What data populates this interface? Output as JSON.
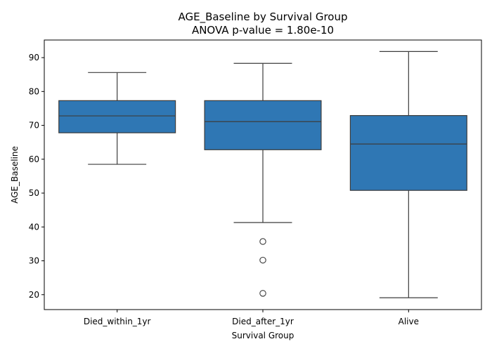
{
  "chart_data": {
    "type": "box",
    "title": "AGE_Baseline by Survival Group",
    "subtitle": "ANOVA p-value = 1.80e-10",
    "xlabel": "Survival Group",
    "ylabel": "AGE_Baseline",
    "ylim": [
      15.6,
      95.2
    ],
    "yticks": [
      20,
      30,
      40,
      50,
      60,
      70,
      80,
      90
    ],
    "categories": [
      "Died_within_1yr",
      "Died_after_1yr",
      "Alive"
    ],
    "boxes": [
      {
        "whisker_low": 58.5,
        "q1": 67.8,
        "median": 72.8,
        "q3": 77.3,
        "whisker_high": 85.6,
        "outliers": []
      },
      {
        "whisker_low": 41.3,
        "q1": 62.8,
        "median": 71.1,
        "q3": 77.3,
        "whisker_high": 88.3,
        "outliers": [
          35.7,
          30.2,
          20.4
        ]
      },
      {
        "whisker_low": 19.1,
        "q1": 50.8,
        "median": 64.5,
        "q3": 72.9,
        "whisker_high": 91.8,
        "outliers": []
      }
    ],
    "grid": false,
    "legend": "none",
    "box_color": "#2f77b4",
    "line_color": "#3c3c3c"
  }
}
